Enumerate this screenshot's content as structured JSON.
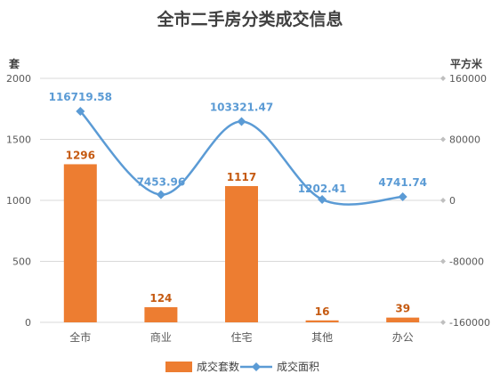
{
  "chart_data": {
    "type": "bar",
    "title": "全市二手房分类成交信息",
    "left_unit": "套",
    "right_unit": "平方米",
    "categories": [
      "全市",
      "商业",
      "住宅",
      "其他",
      "办公"
    ],
    "series": [
      {
        "name": "成交套数",
        "type": "bar",
        "axis": "left",
        "color": "#ED7D31",
        "label_color": "#C55A11",
        "values": [
          1296,
          124,
          1117,
          16,
          39
        ],
        "labels": [
          "1296",
          "124",
          "1117",
          "16",
          "39"
        ]
      },
      {
        "name": "成交面积",
        "type": "line",
        "axis": "right",
        "color": "#5B9BD5",
        "values": [
          116719.58,
          7453.96,
          103321.47,
          1202.41,
          4741.74
        ],
        "labels": [
          "116719.58",
          "7453.96",
          "103321.47",
          "1202.41",
          "4741.74"
        ]
      }
    ],
    "left_axis": {
      "min": 0,
      "max": 2000,
      "ticks": [
        "0",
        "500",
        "1000",
        "1500",
        "2000"
      ]
    },
    "right_axis": {
      "min": -160000,
      "max": 160000,
      "ticks": [
        "-160000",
        "-80000",
        "0",
        "80000",
        "160000"
      ]
    },
    "grid": true,
    "legend_position": "bottom"
  }
}
